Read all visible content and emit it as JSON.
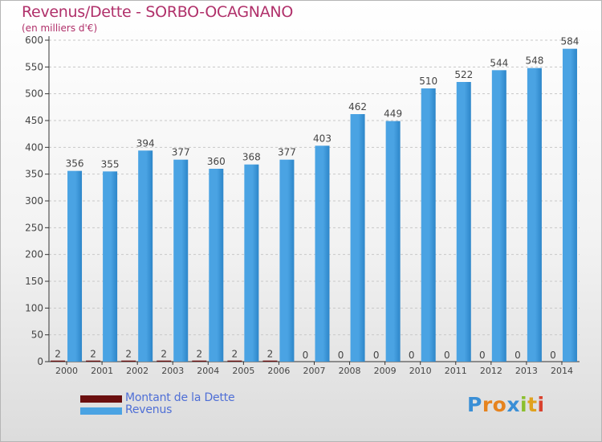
{
  "colors": {
    "title": "#b0306a",
    "revenue_bar": "#4aa3e3",
    "revenue_bar_dark": "#2d86c9",
    "debt_bar": "#6b0f0f",
    "legend_text": "#4f6fd6",
    "grid": "#c8c8c8",
    "axis": "#333333"
  },
  "chart_data": {
    "type": "bar",
    "title": "Revenus/Dette - SORBO-OCAGNANO",
    "subtitle": "(en milliers d'€)",
    "xlabel": "",
    "ylabel": "",
    "ylim": [
      0,
      600
    ],
    "y_ticks": [
      0,
      50,
      100,
      150,
      200,
      250,
      300,
      350,
      400,
      450,
      500,
      550,
      600
    ],
    "grid": true,
    "legend_position": "bottom-left",
    "categories": [
      "2000",
      "2001",
      "2002",
      "2003",
      "2004",
      "2005",
      "2006",
      "2007",
      "2008",
      "2009",
      "2010",
      "2011",
      "2012",
      "2013",
      "2014"
    ],
    "series": [
      {
        "name": "Montant de la Dette",
        "values": [
          2,
          2,
          2,
          2,
          2,
          2,
          2,
          0,
          0,
          0,
          0,
          0,
          0,
          0,
          0
        ]
      },
      {
        "name": "Revenus",
        "values": [
          356,
          355,
          394,
          377,
          360,
          368,
          377,
          403,
          462,
          449,
          510,
          522,
          544,
          548,
          584
        ]
      }
    ]
  },
  "logo": {
    "letters": [
      {
        "ch": "P",
        "color": "#3a8fd6"
      },
      {
        "ch": "r",
        "color": "#e6831e"
      },
      {
        "ch": "o",
        "color": "#e6831e"
      },
      {
        "ch": "x",
        "color": "#3a8fd6"
      },
      {
        "ch": "i",
        "color": "#8bbf2e"
      },
      {
        "ch": "t",
        "color": "#e0a21e"
      },
      {
        "ch": "i",
        "color": "#d9422e"
      }
    ]
  }
}
